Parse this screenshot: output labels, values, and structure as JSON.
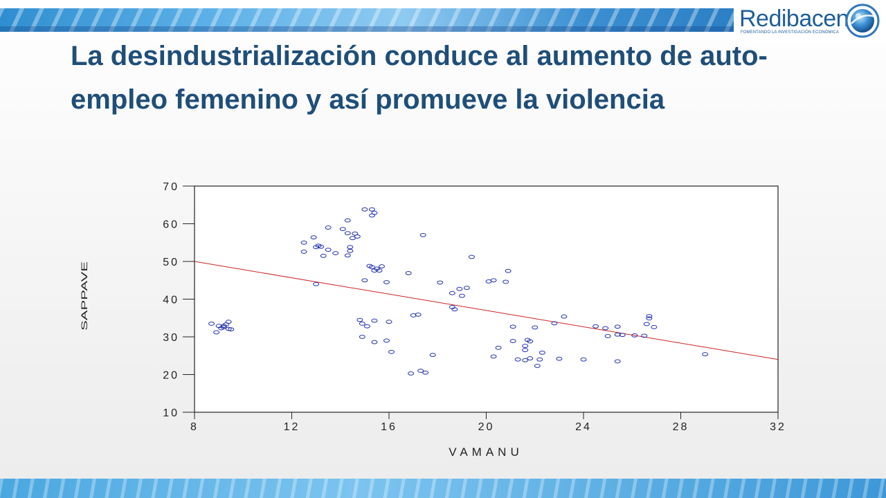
{
  "slide": {
    "title": "La desindustrialización conduce  al aumento de auto-empleo femenino y así promueve la violencia",
    "logo_text": "Redibacen",
    "logo_tagline": "FOMENTANDO LA INVESTIGACIÓN ECONÓMICA"
  },
  "colors": {
    "title": "#1f4e79",
    "points": "#1f2fb0",
    "regression_line": "#cc2222",
    "band": "#3d98d8"
  },
  "chart_data": {
    "type": "scatter",
    "title": "",
    "xlabel": "VAMANU",
    "ylabel": "SAPPAVE",
    "xlim": [
      8,
      32
    ],
    "ylim": [
      10,
      70
    ],
    "xticks": [
      "8",
      "12",
      "16",
      "20",
      "24",
      "28",
      "32"
    ],
    "yticks": [
      "10",
      "20",
      "30",
      "40",
      "50",
      "60",
      "70"
    ],
    "grid": false,
    "legend": "none",
    "fit_line": {
      "x": [
        8,
        32
      ],
      "y": [
        50,
        24
      ]
    },
    "points": [
      [
        8.7,
        33.5
      ],
      [
        8.9,
        31.2
      ],
      [
        9.0,
        32.9
      ],
      [
        9.1,
        32.3
      ],
      [
        9.2,
        32.6
      ],
      [
        9.3,
        33.3
      ],
      [
        9.4,
        34.0
      ],
      [
        9.4,
        32.1
      ],
      [
        9.5,
        32.0
      ],
      [
        9.2,
        32.9
      ],
      [
        12.5,
        55.0
      ],
      [
        12.5,
        52.6
      ],
      [
        12.9,
        56.4
      ],
      [
        13.0,
        53.8
      ],
      [
        13.1,
        54.2
      ],
      [
        13.2,
        53.9
      ],
      [
        13.3,
        51.5
      ],
      [
        13.5,
        59.0
      ],
      [
        13.5,
        53.1
      ],
      [
        13.8,
        52.2
      ],
      [
        14.1,
        58.6
      ],
      [
        14.3,
        60.9
      ],
      [
        14.3,
        51.6
      ],
      [
        14.4,
        53.8
      ],
      [
        14.4,
        52.8
      ],
      [
        14.5,
        56.2
      ],
      [
        14.6,
        57.4
      ],
      [
        14.7,
        56.6
      ],
      [
        14.3,
        57.5
      ],
      [
        13.0,
        44.0
      ],
      [
        15.0,
        63.8
      ],
      [
        15.3,
        63.8
      ],
      [
        15.3,
        62.2
      ],
      [
        15.4,
        62.9
      ],
      [
        15.2,
        48.8
      ],
      [
        15.3,
        48.5
      ],
      [
        15.5,
        48.1
      ],
      [
        15.6,
        47.6
      ],
      [
        15.7,
        48.7
      ],
      [
        15.9,
        44.5
      ],
      [
        15.0,
        45.0
      ],
      [
        15.4,
        47.6
      ],
      [
        14.8,
        34.5
      ],
      [
        14.9,
        33.5
      ],
      [
        15.1,
        32.8
      ],
      [
        15.4,
        34.3
      ],
      [
        16.0,
        34.0
      ],
      [
        14.9,
        30.0
      ],
      [
        15.4,
        28.6
      ],
      [
        15.9,
        29.0
      ],
      [
        16.1,
        26.0
      ],
      [
        16.8,
        46.9
      ],
      [
        17.4,
        57.0
      ],
      [
        17.0,
        35.7
      ],
      [
        17.2,
        35.9
      ],
      [
        17.8,
        25.2
      ],
      [
        16.9,
        20.3
      ],
      [
        17.3,
        21.0
      ],
      [
        17.5,
        20.5
      ],
      [
        18.1,
        44.4
      ],
      [
        18.6,
        41.6
      ],
      [
        18.6,
        37.9
      ],
      [
        18.9,
        42.7
      ],
      [
        19.0,
        40.9
      ],
      [
        19.2,
        43.0
      ],
      [
        19.4,
        51.2
      ],
      [
        18.7,
        37.3
      ],
      [
        20.1,
        44.7
      ],
      [
        20.3,
        45.0
      ],
      [
        20.8,
        44.6
      ],
      [
        20.9,
        47.5
      ],
      [
        20.3,
        24.8
      ],
      [
        20.5,
        27.1
      ],
      [
        21.1,
        32.7
      ],
      [
        21.1,
        28.9
      ],
      [
        21.3,
        24.0
      ],
      [
        21.6,
        23.8
      ],
      [
        21.6,
        26.5
      ],
      [
        21.7,
        29.2
      ],
      [
        21.8,
        28.8
      ],
      [
        21.6,
        27.6
      ],
      [
        22.0,
        32.5
      ],
      [
        22.2,
        24.0
      ],
      [
        22.3,
        25.8
      ],
      [
        22.1,
        22.3
      ],
      [
        21.8,
        24.3
      ],
      [
        22.8,
        33.6
      ],
      [
        23.0,
        24.2
      ],
      [
        23.2,
        35.4
      ],
      [
        24.0,
        24.0
      ],
      [
        24.5,
        32.8
      ],
      [
        24.9,
        32.3
      ],
      [
        25.0,
        30.2
      ],
      [
        25.4,
        32.7
      ],
      [
        25.4,
        23.5
      ],
      [
        25.4,
        30.6
      ],
      [
        25.6,
        30.5
      ],
      [
        26.1,
        30.4
      ],
      [
        26.5,
        30.3
      ],
      [
        26.6,
        33.4
      ],
      [
        26.7,
        35.5
      ],
      [
        26.7,
        34.9
      ],
      [
        26.9,
        32.6
      ],
      [
        29.0,
        25.4
      ]
    ]
  }
}
